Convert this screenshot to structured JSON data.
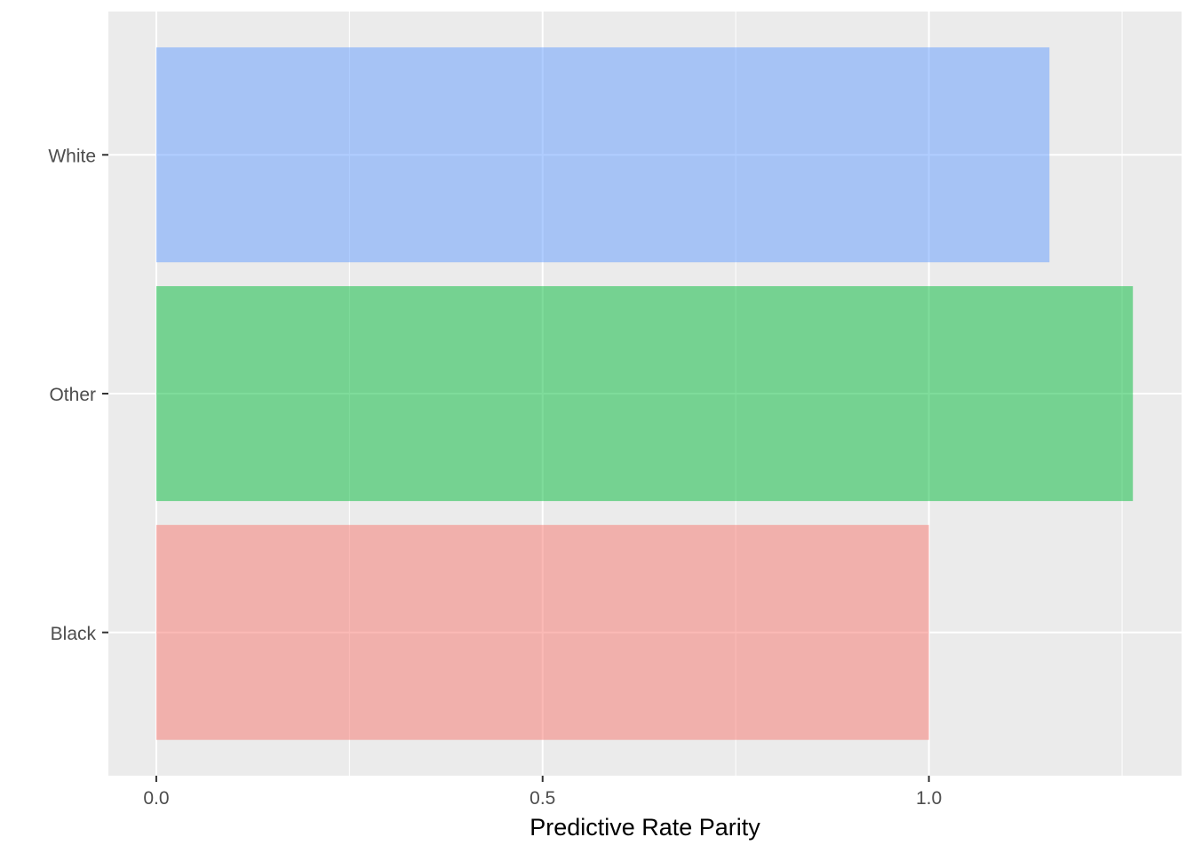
{
  "chart_data": {
    "type": "bar",
    "orientation": "horizontal",
    "categories": [
      "Black",
      "Other",
      "White"
    ],
    "values": [
      1.0,
      1.264,
      1.156
    ],
    "colors": [
      "#F8766D",
      "#00BA38",
      "#619CFF"
    ],
    "bar_opacity": 0.5,
    "panel_background": "#EBEBEB",
    "grid": true,
    "legend": "none",
    "title": "",
    "xlabel": "Predictive Rate Parity",
    "ylabel": "",
    "xlim": [
      -0.062,
      1.327
    ],
    "xticks": [
      0.0,
      0.5,
      1.0
    ],
    "xtick_labels": [
      "0.0",
      "0.5",
      "1.0"
    ],
    "x_minor_ticks": [
      0.25,
      0.75,
      1.25
    ]
  }
}
